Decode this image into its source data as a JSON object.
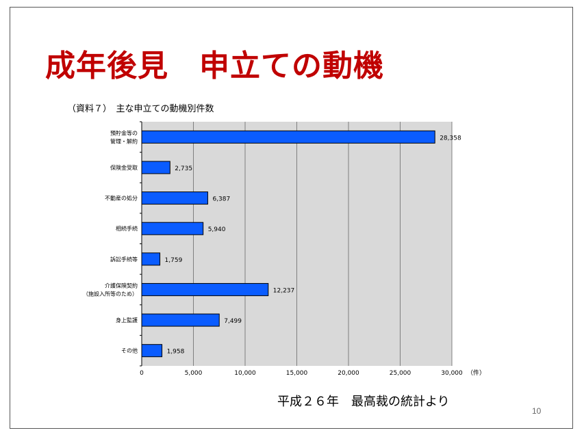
{
  "slide": {
    "title": "成年後見　申立ての動機",
    "caption": "（資料７）　主な申立ての動機別件数",
    "source_note": "平成２６年　最高裁の統計より",
    "page_number": "10"
  },
  "chart_data": {
    "type": "bar",
    "orientation": "horizontal",
    "title": "主な申立ての動機別件数",
    "categories": [
      [
        "預貯金等の",
        "管理・解約"
      ],
      [
        "保険金受取"
      ],
      [
        "不動産の処分"
      ],
      [
        "相続手続"
      ],
      [
        "訴訟手続等"
      ],
      [
        "介護保険契約",
        "（施設入所等のため）"
      ],
      [
        "身上監護"
      ],
      [
        "その他"
      ]
    ],
    "values": [
      28358,
      2735,
      6387,
      5940,
      1759,
      12237,
      7499,
      1958
    ],
    "value_labels": [
      "28,358",
      "2,735",
      "6,387",
      "5,940",
      "1,759",
      "12,237",
      "7,499",
      "1,958"
    ],
    "xlim": [
      0,
      30000
    ],
    "xticks": [
      0,
      5000,
      10000,
      15000,
      20000,
      25000,
      30000
    ],
    "xtick_labels": [
      "0",
      "5,000",
      "10,000",
      "15,000",
      "20,000",
      "25,000",
      "30,000"
    ],
    "xunit": "（件）",
    "grid": "vertical",
    "legend": "none",
    "colors": {
      "bar": "#0a5cff",
      "bar_edge": "#000000",
      "plot_bg": "#d9d9d9",
      "gridline": "#7f7f7f"
    }
  }
}
